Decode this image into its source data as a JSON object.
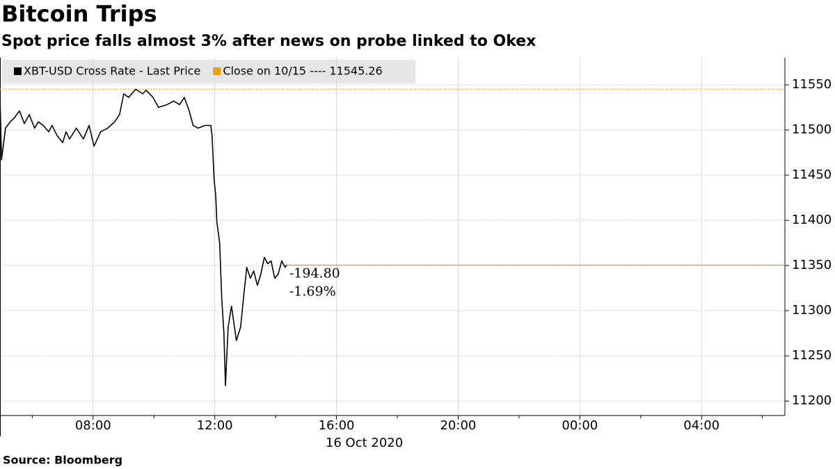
{
  "chart_data": {
    "type": "line",
    "title": "Bitcoin Trips",
    "subtitle": "Spot price falls almost 3% after news on probe linked to Okex",
    "source": "Source: Bloomberg",
    "x_date_label": "16 Oct 2020",
    "series": [
      {
        "name": "XBT-USD Cross Rate - Last Price",
        "color": "#000000",
        "x": [
          4.94,
          4.99,
          5.12,
          5.28,
          5.4,
          5.58,
          5.74,
          5.9,
          6.08,
          6.2,
          6.36,
          6.54,
          6.65,
          6.81,
          7.0,
          7.11,
          7.23,
          7.45,
          7.68,
          7.87,
          8.03,
          8.25,
          8.48,
          8.71,
          8.87,
          9.01,
          9.17,
          9.4,
          9.63,
          9.74,
          9.97,
          10.15,
          10.43,
          10.65,
          10.84,
          11.0,
          11.16,
          11.29,
          11.45,
          11.68,
          11.87,
          11.91,
          11.98,
          12.03,
          12.07,
          12.16,
          12.23,
          12.3,
          12.35,
          12.44,
          12.55,
          12.71,
          12.85,
          12.94,
          13.05,
          13.17,
          13.28,
          13.4,
          13.51,
          13.63,
          13.74,
          13.85,
          13.97,
          14.08,
          14.2,
          14.31,
          14.36
        ],
        "values": [
          11536,
          11467,
          11502,
          11509,
          11513,
          11521,
          11507,
          11517,
          11502,
          11509,
          11505,
          11498,
          11505,
          11494,
          11486,
          11498,
          11490,
          11502,
          11490,
          11505,
          11482,
          11498,
          11502,
          11509,
          11517,
          11540,
          11536,
          11545,
          11540,
          11544,
          11536,
          11525,
          11528,
          11532,
          11528,
          11536,
          11521,
          11505,
          11502,
          11505,
          11505,
          11494,
          11444,
          11428,
          11398,
          11375,
          11313,
          11275,
          11217,
          11282,
          11305,
          11267,
          11282,
          11313,
          11348,
          11336,
          11344,
          11328,
          11340,
          11359,
          11352,
          11355,
          11336,
          11340,
          11355,
          11348,
          11350.46
        ]
      }
    ],
    "reference_lines": [
      {
        "name": "Close on 10/15 ---- 11545.26",
        "value": 11545.26,
        "color": "#f0a000",
        "style": "dotted"
      },
      {
        "value": 11350.46,
        "color": "#f0a000",
        "style": "solid"
      }
    ],
    "annotations": [
      "-194.80",
      "-1.69%"
    ],
    "annotation_color": "#f0a000",
    "xlim": [
      4.94,
      30.74
    ],
    "xticks": [
      {
        "value": 8,
        "label": "08:00"
      },
      {
        "value": 12,
        "label": "12:00"
      },
      {
        "value": 16,
        "label": "16:00"
      },
      {
        "value": 20,
        "label": "20:00"
      },
      {
        "value": 24,
        "label": "00:00"
      },
      {
        "value": 28,
        "label": "04:00"
      }
    ],
    "xminorticks": [
      6,
      10,
      14,
      18,
      22,
      26,
      30
    ],
    "ylim": [
      11184,
      11580
    ],
    "yticks": [
      11200,
      11250,
      11300,
      11350,
      11400,
      11450,
      11500,
      11550
    ],
    "y_axis_side": "right",
    "grid": true
  }
}
